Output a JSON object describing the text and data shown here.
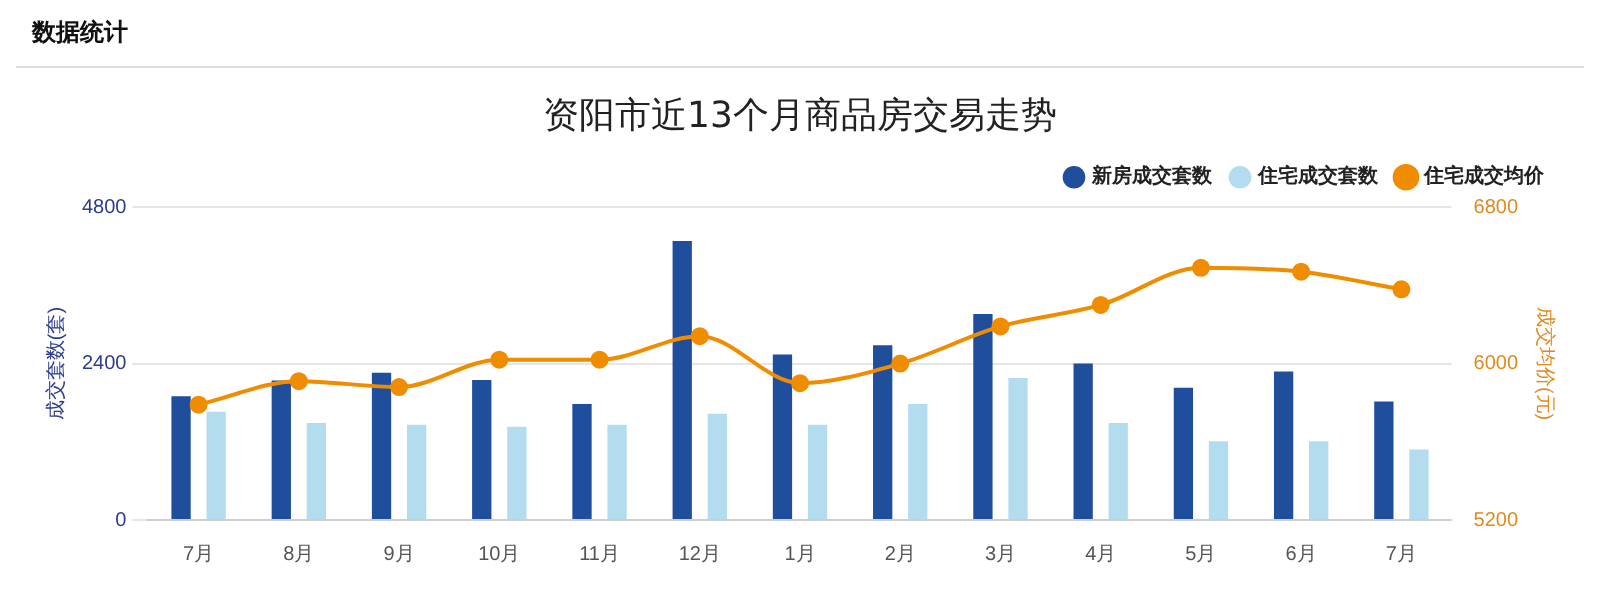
{
  "chart_data": {
    "type": "bar",
    "title": "资阳市近13个月商品房交易走势",
    "annotations": [
      "数据统计"
    ],
    "ylabel": "成交套数(套)",
    "y2label": "成交均价(元)",
    "categories": [
      "7月",
      "8月",
      "9月",
      "10月",
      "11月",
      "12月",
      "1月",
      "2月",
      "3月",
      "4月",
      "5月",
      "6月",
      "7月"
    ],
    "series": [
      {
        "name": "新房成交套数",
        "color": "#1f4e9c",
        "values": [
          1900,
          2140,
          2260,
          2150,
          1780,
          4280,
          2540,
          2680,
          3160,
          2400,
          2030,
          2280,
          1820
        ]
      },
      {
        "name": "住宅成交套数",
        "color": "#b3dcef",
        "values": [
          1660,
          1490,
          1460,
          1430,
          1460,
          1630,
          1460,
          1780,
          2180,
          1490,
          1210,
          1210,
          1080
        ]
      },
      {
        "name": "住宅成交均价",
        "type": "line",
        "axis": "y2",
        "color": "#f08c00",
        "marker": "circle",
        "values": [
          5790,
          5910,
          5880,
          6020,
          6020,
          6140,
          5900,
          6000,
          6190,
          6300,
          6490,
          6470,
          6380
        ]
      }
    ],
    "ylim": [
      0,
      4800
    ],
    "yticks": [
      0,
      2400,
      4800
    ],
    "y2lim": [
      5200,
      6800
    ],
    "y2ticks": [
      5200,
      6000,
      6800
    ],
    "grid": "y",
    "legend": "top right"
  }
}
